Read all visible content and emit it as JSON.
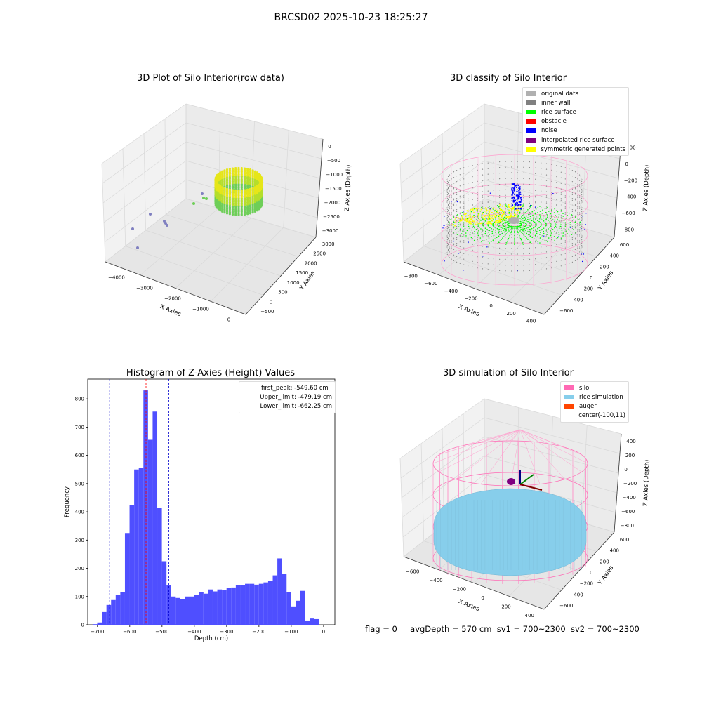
{
  "figure_title": "BRCSD02 2025-10-23 18:25:27",
  "footer": {
    "flag": "flag = 0",
    "avg_depth": "avgDepth = 570 cm",
    "sv1": "sv1 = 700~2300",
    "sv2": "sv2 = 700~2300"
  },
  "colors": {
    "hist_bar": "#4f4fff",
    "first_peak": "#ff0000",
    "limit": "#0000cc",
    "silo_wire": "#ff69b4",
    "rice_sim": "#87ceeb",
    "gray_wall": "#808080",
    "rice_surface": "#00ff00",
    "noise": "#0000ff",
    "obstacle": "#ff0000",
    "interp": "#800080",
    "symmetric": "#ffff00",
    "auger": "#ff4500"
  },
  "chart_data": [
    {
      "type": "scatter",
      "subtype": "3d",
      "title": "3D Plot of Silo Interior(row data)",
      "xlabel": "X Axies",
      "ylabel": "Y Axies",
      "zlabel": "Z Axies (Depth)",
      "xticks": [
        "−4000",
        "−3000",
        "−2000",
        "−1000",
        "0"
      ],
      "yticks": [
        "−500",
        "0",
        "500",
        "1000",
        "1500",
        "2000",
        "2500",
        "3000"
      ],
      "zticks": [
        "0",
        "−500",
        "−1000",
        "−1500",
        "−2000",
        "−2500",
        "−3000"
      ],
      "description_points": "ring cluster of points around x≈-200, y≈1500, z≈-2000..-2500 plus scattered outliers"
    },
    {
      "type": "scatter",
      "subtype": "3d",
      "title": "3D classify of Silo Interior",
      "xlabel": "X Axies",
      "ylabel": "Y Axies",
      "zlabel": "Z Axies (Depth)",
      "xticks": [
        "−800",
        "−600",
        "−400",
        "−200",
        "0",
        "200",
        "400"
      ],
      "yticks": [
        "−600",
        "−400",
        "−200",
        "0",
        "200",
        "400",
        "600"
      ],
      "zticks": [
        "200",
        "0",
        "−200",
        "−400",
        "−600",
        "−800"
      ],
      "legend": [
        {
          "label": "original data",
          "color": "#b0b0b0"
        },
        {
          "label": "inner wall",
          "color": "#808080"
        },
        {
          "label": "rice surface",
          "color": "#00ff00"
        },
        {
          "label": "obstacle",
          "color": "#ff0000"
        },
        {
          "label": "noise",
          "color": "#0000ff"
        },
        {
          "label": "interpolated rice surface",
          "color": "#800080"
        },
        {
          "label": "symmetric generated points",
          "color": "#ffff00"
        }
      ]
    },
    {
      "type": "bar",
      "subtype": "histogram",
      "title": "Histogram of Z-Axies (Height) Values",
      "xlabel": "Depth (cm)",
      "ylabel": "Frequency",
      "xlim": [
        -730,
        35
      ],
      "ylim": [
        0,
        870
      ],
      "xticks": [
        -700,
        -600,
        -500,
        -400,
        -300,
        -200,
        -100,
        0
      ],
      "yticks": [
        0,
        100,
        200,
        300,
        400,
        500,
        600,
        700,
        800
      ],
      "bin_start": -715,
      "bin_width": 14.3,
      "values": [
        2,
        8,
        45,
        70,
        90,
        105,
        115,
        325,
        425,
        550,
        555,
        830,
        655,
        755,
        415,
        225,
        140,
        100,
        95,
        92,
        100,
        100,
        105,
        115,
        110,
        125,
        118,
        125,
        122,
        130,
        132,
        140,
        140,
        145,
        145,
        142,
        145,
        150,
        155,
        175,
        235,
        180,
        115,
        65,
        85,
        120,
        15,
        22,
        20
      ],
      "vlines": [
        {
          "label": "first_peak: -549.60 cm",
          "x": -549.6,
          "color": "#ff0000"
        },
        {
          "label": "Upper_limit: -479.19 cm",
          "x": -479.19,
          "color": "#0000cc"
        },
        {
          "label": "Lower_limit: -662.25 cm",
          "x": -662.25,
          "color": "#0000cc"
        }
      ]
    },
    {
      "type": "scatter",
      "subtype": "3d",
      "title": "3D simulation of Silo Interior",
      "xlabel": "X Axies",
      "ylabel": "Y Axies",
      "zlabel": "Z Axies (Depth)",
      "xticks": [
        "−600",
        "−400",
        "−200",
        "0",
        "200",
        "400"
      ],
      "yticks": [
        "−600",
        "−400",
        "−200",
        "0",
        "200",
        "400",
        "600"
      ],
      "zticks": [
        "400",
        "200",
        "0",
        "−200",
        "−400",
        "−600",
        "−800"
      ],
      "legend": [
        {
          "label": "silo",
          "color": "#ff69b4"
        },
        {
          "label": "rice simulation",
          "color": "#87ceeb"
        },
        {
          "label": "auger",
          "color": "#ff4500"
        },
        {
          "label": "center(-100,11)",
          "color": "transparent"
        }
      ]
    }
  ]
}
